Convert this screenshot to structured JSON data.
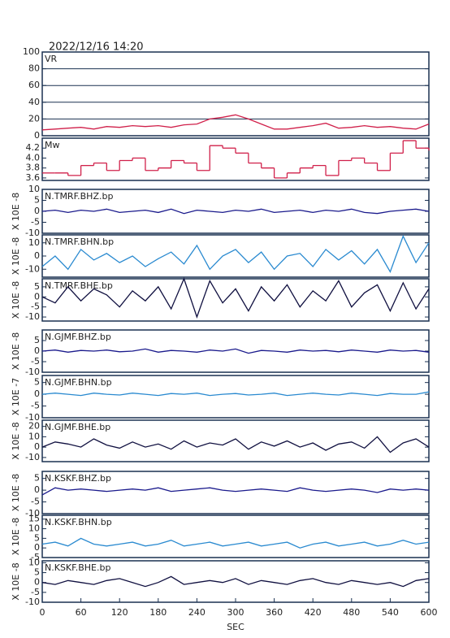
{
  "title": "2022/12/16  14:20",
  "chart_data": [
    {
      "type": "line",
      "title": "VR",
      "color": "#d0204a",
      "xlim": [
        0,
        600
      ],
      "ylim": [
        0,
        100
      ],
      "yticks": [
        0,
        20,
        40,
        60,
        80,
        100
      ],
      "grid": true,
      "x": [
        0,
        20,
        40,
        60,
        80,
        100,
        120,
        140,
        160,
        180,
        200,
        220,
        240,
        260,
        280,
        300,
        320,
        340,
        360,
        380,
        400,
        420,
        440,
        460,
        480,
        500,
        520,
        540,
        560,
        580,
        600
      ],
      "values": [
        7,
        8,
        9,
        10,
        8,
        11,
        10,
        12,
        11,
        12,
        10,
        13,
        14,
        20,
        22,
        25,
        20,
        14,
        8,
        8,
        10,
        12,
        15,
        9,
        10,
        12,
        10,
        11,
        9,
        8,
        14
      ]
    },
    {
      "type": "step",
      "title": "Mw",
      "color": "#d0204a",
      "xlim": [
        0,
        600
      ],
      "ylim": [
        3.55,
        4.4
      ],
      "yticks": [
        3.6,
        3.8,
        {
          "value": 4,
          "label": "4.0"
        },
        4.2
      ],
      "x": [
        0,
        20,
        40,
        60,
        80,
        100,
        120,
        140,
        160,
        180,
        200,
        220,
        240,
        260,
        280,
        300,
        320,
        340,
        360,
        380,
        400,
        420,
        440,
        460,
        480,
        500,
        520,
        540,
        560,
        580,
        600
      ],
      "values": [
        3.7,
        3.7,
        3.65,
        3.85,
        3.9,
        3.75,
        3.95,
        4.0,
        3.75,
        3.8,
        3.95,
        3.9,
        3.75,
        4.25,
        4.2,
        4.1,
        3.9,
        3.8,
        3.6,
        3.7,
        3.8,
        3.85,
        3.65,
        3.95,
        4.0,
        3.9,
        3.75,
        4.1,
        4.35,
        4.2,
        4.15
      ]
    },
    {
      "type": "line",
      "title": "N.TMRF.BHZ.bp",
      "ylabel": "X 10E -8",
      "color": "#1a1a8c",
      "xlim": [
        0,
        600
      ],
      "ylim": [
        -10,
        10
      ],
      "yticks": [
        -10,
        -5,
        0,
        5,
        10
      ],
      "x": [
        0,
        20,
        40,
        60,
        80,
        100,
        120,
        140,
        160,
        180,
        200,
        220,
        240,
        260,
        280,
        300,
        320,
        340,
        360,
        380,
        400,
        420,
        440,
        460,
        480,
        500,
        520,
        540,
        560,
        580,
        600
      ],
      "values": [
        0,
        0.5,
        -0.5,
        0.5,
        0,
        1,
        -0.5,
        0,
        0.5,
        -0.5,
        1,
        -1,
        0.5,
        0,
        -0.5,
        0.5,
        0,
        1,
        -0.5,
        0,
        0.5,
        -0.5,
        0.5,
        0,
        1,
        -0.5,
        -1,
        0,
        0.5,
        1,
        0
      ]
    },
    {
      "type": "line",
      "title": "N.TMRF.BHN.bp",
      "ylabel": "X 10E -8",
      "color": "#2a8ad0",
      "xlim": [
        0,
        600
      ],
      "ylim": [
        -16,
        16
      ],
      "yticks": [
        -10,
        0,
        10
      ],
      "x": [
        0,
        20,
        40,
        60,
        80,
        100,
        120,
        140,
        160,
        180,
        200,
        220,
        240,
        260,
        280,
        300,
        320,
        340,
        360,
        380,
        400,
        420,
        440,
        460,
        480,
        500,
        520,
        540,
        560,
        580,
        600
      ],
      "values": [
        -8,
        0,
        -10,
        5,
        -3,
        2,
        -5,
        0,
        -8,
        -2,
        3,
        -6,
        8,
        -10,
        0,
        5,
        -5,
        3,
        -10,
        0,
        2,
        -8,
        5,
        -3,
        4,
        -6,
        5,
        -12,
        15,
        -5,
        10
      ]
    },
    {
      "type": "line",
      "title": "N.TMRF.BHE.bp",
      "ylabel": "X 10E -8",
      "color": "#101040",
      "xlim": [
        0,
        600
      ],
      "ylim": [
        -12,
        9
      ],
      "yticks": [
        -10,
        -5,
        0,
        5
      ],
      "x": [
        0,
        20,
        40,
        60,
        80,
        100,
        120,
        140,
        160,
        180,
        200,
        220,
        240,
        260,
        280,
        300,
        320,
        340,
        360,
        380,
        400,
        420,
        440,
        460,
        480,
        500,
        520,
        540,
        560,
        580,
        600
      ],
      "values": [
        0,
        -3,
        5,
        -2,
        4,
        1,
        -5,
        3,
        -2,
        5,
        -6,
        9,
        -10,
        8,
        -3,
        4,
        -7,
        5,
        -2,
        6,
        -5,
        3,
        -2,
        8,
        -5,
        2,
        6,
        -7,
        7,
        -6,
        4
      ]
    },
    {
      "type": "line",
      "title": "N.GJMF.BHZ.bp",
      "ylabel": "X 10E -8",
      "color": "#1a1a8c",
      "xlim": [
        0,
        600
      ],
      "ylim": [
        -10,
        10
      ],
      "yticks": [
        -10,
        -5,
        0,
        5
      ],
      "x": [
        0,
        20,
        40,
        60,
        80,
        100,
        120,
        140,
        160,
        180,
        200,
        220,
        240,
        260,
        280,
        300,
        320,
        340,
        360,
        380,
        400,
        420,
        440,
        460,
        480,
        500,
        520,
        540,
        560,
        580,
        600
      ],
      "values": [
        0,
        0.5,
        -0.5,
        0.3,
        0,
        0.5,
        -0.3,
        0,
        1,
        -0.5,
        0.3,
        0,
        -0.5,
        0.5,
        0,
        1,
        -1,
        0.3,
        0,
        -0.5,
        0.5,
        0,
        0.3,
        -0.3,
        0.5,
        0,
        -0.5,
        0.5,
        0,
        0.3,
        -0.5
      ]
    },
    {
      "type": "line",
      "title": "N.GJMF.BHN.bp",
      "ylabel": "X 10E -7",
      "color": "#2a8ad0",
      "xlim": [
        0,
        600
      ],
      "ylim": [
        -10,
        8
      ],
      "yticks": [
        -10,
        -5,
        0,
        5
      ],
      "x": [
        0,
        20,
        40,
        60,
        80,
        100,
        120,
        140,
        160,
        180,
        200,
        220,
        240,
        260,
        280,
        300,
        320,
        340,
        360,
        380,
        400,
        420,
        440,
        460,
        480,
        500,
        520,
        540,
        560,
        580,
        600
      ],
      "values": [
        0,
        0.5,
        0,
        -0.5,
        0.5,
        0,
        -0.3,
        0.5,
        0,
        -0.5,
        0.3,
        0,
        0.5,
        -0.5,
        0,
        0.3,
        -0.3,
        0,
        0.5,
        -0.5,
        0,
        0.5,
        0,
        -0.3,
        0.5,
        0,
        -0.5,
        0.3,
        0,
        0,
        1
      ]
    },
    {
      "type": "line",
      "title": "N.GJMF.BHE.bp",
      "ylabel": "X 10E -8",
      "color": "#101040",
      "xlim": [
        0,
        600
      ],
      "ylim": [
        -14,
        26
      ],
      "yticks": [
        -10,
        0,
        10,
        20
      ],
      "x": [
        0,
        20,
        40,
        60,
        80,
        100,
        120,
        140,
        160,
        180,
        200,
        220,
        240,
        260,
        280,
        300,
        320,
        340,
        360,
        380,
        400,
        420,
        440,
        460,
        480,
        500,
        520,
        540,
        560,
        580,
        600
      ],
      "values": [
        0,
        5,
        3,
        0,
        8,
        2,
        -1,
        5,
        0,
        3,
        -2,
        6,
        0,
        4,
        2,
        8,
        -2,
        5,
        1,
        6,
        0,
        4,
        -3,
        3,
        5,
        -1,
        10,
        -5,
        4,
        8,
        0
      ]
    },
    {
      "type": "line",
      "title": "N.KSKF.BHZ.bp",
      "ylabel": "X 10E -8",
      "color": "#1a1a8c",
      "xlim": [
        0,
        600
      ],
      "ylim": [
        -10,
        8
      ],
      "yticks": [
        -10,
        -5,
        0,
        5
      ],
      "x": [
        0,
        20,
        40,
        60,
        80,
        100,
        120,
        140,
        160,
        180,
        200,
        220,
        240,
        260,
        280,
        300,
        320,
        340,
        360,
        380,
        400,
        420,
        440,
        460,
        480,
        500,
        520,
        540,
        560,
        580,
        600
      ],
      "values": [
        -2,
        1,
        0,
        0.5,
        0,
        -0.5,
        0,
        0.5,
        0,
        1,
        -0.5,
        0,
        0.5,
        1,
        0,
        -0.5,
        0,
        0.5,
        0,
        -0.5,
        1,
        0,
        -0.5,
        0,
        0.5,
        0,
        -1,
        0.5,
        0,
        0.5,
        0
      ]
    },
    {
      "type": "line",
      "title": "N.KSKF.BHN.bp",
      "ylabel": "X 10E -8",
      "color": "#2a8ad0",
      "xlim": [
        0,
        600
      ],
      "ylim": [
        -5,
        17
      ],
      "yticks": [
        -5,
        0,
        5,
        10,
        15
      ],
      "x": [
        0,
        20,
        40,
        60,
        80,
        100,
        120,
        140,
        160,
        180,
        200,
        220,
        240,
        260,
        280,
        300,
        320,
        340,
        360,
        380,
        400,
        420,
        440,
        460,
        480,
        500,
        520,
        540,
        560,
        580,
        600
      ],
      "values": [
        2,
        3,
        1,
        5,
        2,
        1,
        2,
        3,
        1,
        2,
        4,
        1,
        2,
        3,
        1,
        2,
        3,
        1,
        2,
        3,
        0,
        2,
        3,
        1,
        2,
        3,
        1,
        2,
        4,
        2,
        3
      ]
    },
    {
      "type": "line",
      "title": "N.KSKF.BHE.bp",
      "ylabel": "X 10E -8",
      "color": "#101040",
      "xlim": [
        0,
        600
      ],
      "ylim": [
        -10,
        11
      ],
      "yticks": [
        -10,
        -5,
        0,
        5,
        10
      ],
      "xticks": [
        0,
        60,
        120,
        180,
        240,
        300,
        360,
        420,
        480,
        540,
        600
      ],
      "xlabel": "SEC",
      "x": [
        0,
        20,
        40,
        60,
        80,
        100,
        120,
        140,
        160,
        180,
        200,
        220,
        240,
        260,
        280,
        300,
        320,
        340,
        360,
        380,
        400,
        420,
        440,
        460,
        480,
        500,
        520,
        540,
        560,
        580,
        600
      ],
      "values": [
        0,
        -1,
        1,
        0,
        -1,
        1,
        2,
        0,
        -2,
        0,
        3,
        -1,
        0,
        1,
        0,
        2,
        -1,
        1,
        0,
        -1,
        1,
        2,
        0,
        -1,
        1,
        0,
        -1,
        0,
        -2,
        1,
        2
      ]
    }
  ]
}
